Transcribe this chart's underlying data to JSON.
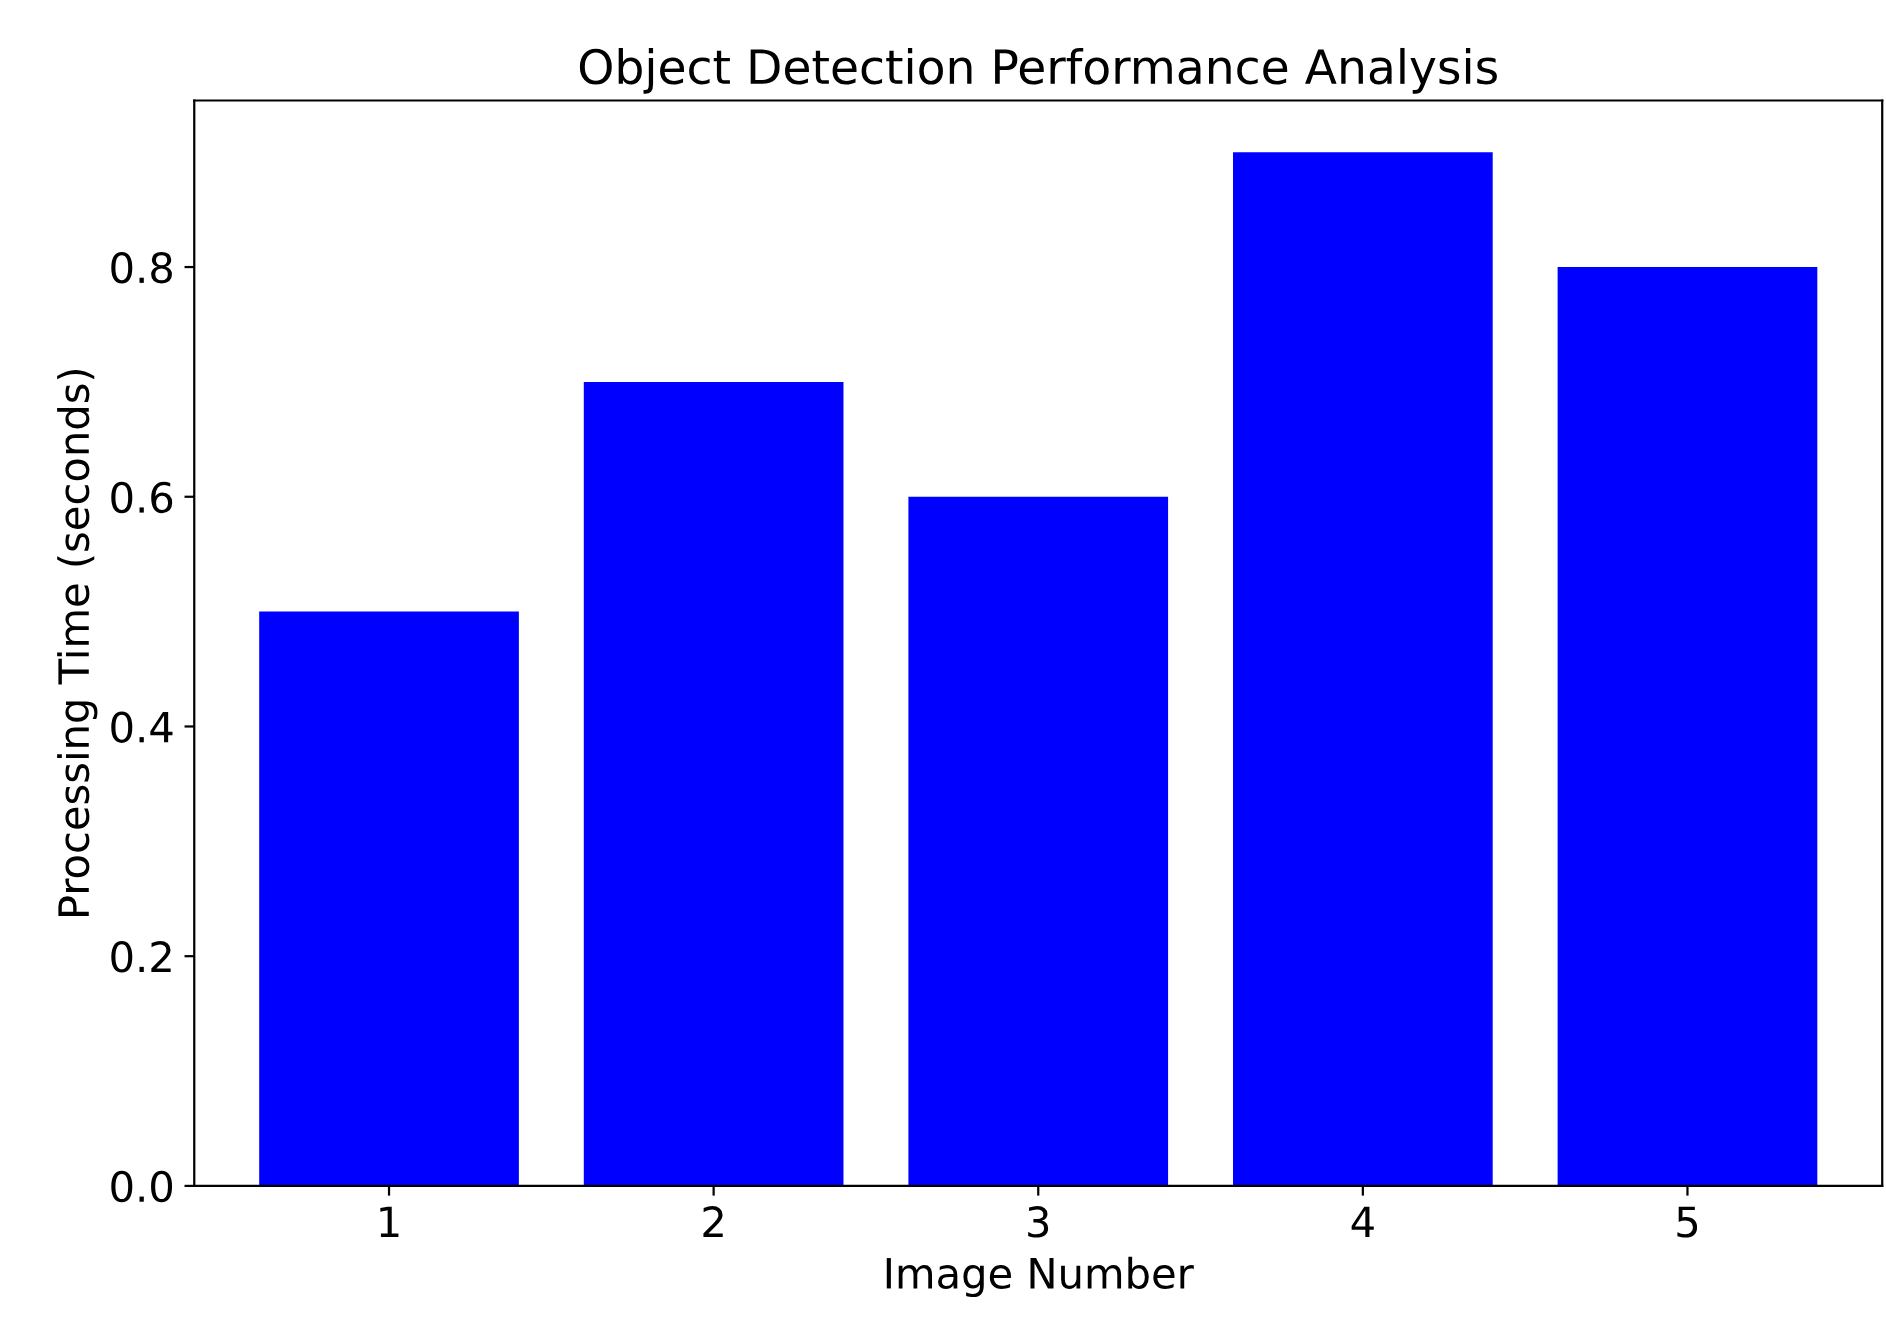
{
  "chart_data": {
    "type": "bar",
    "title": "Object Detection Performance Analysis",
    "xlabel": "Image Number",
    "ylabel": "Processing Time (seconds)",
    "categories": [
      "1",
      "2",
      "3",
      "4",
      "5"
    ],
    "values": [
      0.5,
      0.7,
      0.6,
      0.9,
      0.8
    ],
    "color": "#0000ff",
    "ylim": [
      0,
      0.945
    ],
    "yticks": [
      {
        "value": 0,
        "label": "0.0"
      },
      {
        "value": 0.2,
        "label": "0.2"
      },
      {
        "value": 0.4,
        "label": "0.4"
      },
      {
        "value": 0.6,
        "label": "0.6"
      },
      {
        "value": 0.8,
        "label": "0.8"
      }
    ],
    "grid": false
  }
}
